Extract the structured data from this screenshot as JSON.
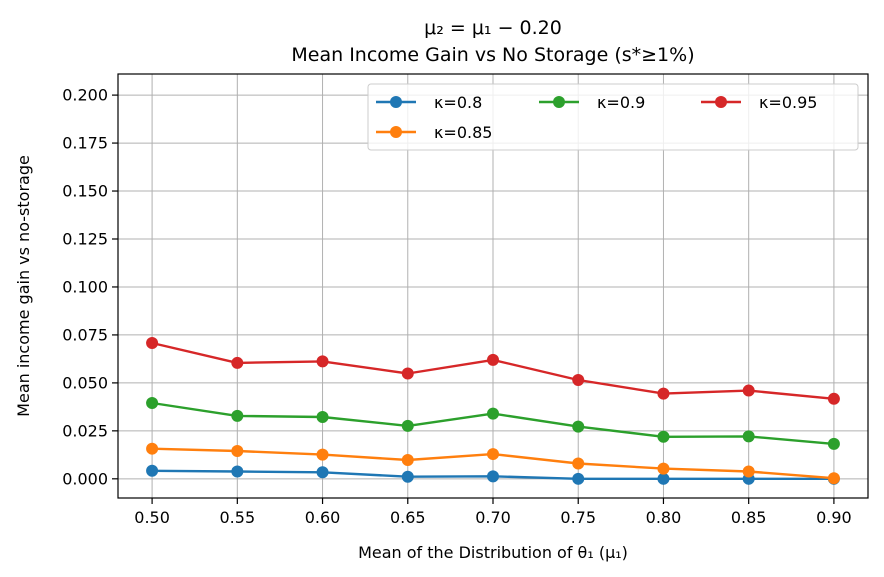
{
  "chart_data": {
    "type": "line",
    "title_line1": "μ₂ = μ₁ − 0.20",
    "title_line2": "Mean Income Gain vs No Storage (s*≥1%)",
    "xlabel": "Mean of the Distribution of θ₁ (μ₁)",
    "ylabel": "Mean income gain vs no-storage",
    "x": [
      0.5,
      0.55,
      0.6,
      0.65,
      0.7,
      0.75,
      0.8,
      0.85,
      0.9
    ],
    "xticks": [
      "0.50",
      "0.55",
      "0.60",
      "0.65",
      "0.70",
      "0.75",
      "0.80",
      "0.85",
      "0.90"
    ],
    "yticks": [
      "0.000",
      "0.025",
      "0.050",
      "0.075",
      "0.100",
      "0.125",
      "0.150",
      "0.175",
      "0.200"
    ],
    "ytick_values": [
      0.0,
      0.025,
      0.05,
      0.075,
      0.1,
      0.125,
      0.15,
      0.175,
      0.2
    ],
    "xlim": [
      0.48,
      0.92
    ],
    "ylim": [
      -0.01,
      0.211
    ],
    "grid": true,
    "legend_position": "top-right",
    "series": [
      {
        "name": "κ=0.8",
        "color": "#1f77b4",
        "values": [
          0.0042,
          0.0038,
          0.0034,
          0.0011,
          0.0013,
          0.0,
          0.0,
          0.0,
          0.0
        ]
      },
      {
        "name": "κ=0.85",
        "color": "#ff7f0e",
        "values": [
          0.0157,
          0.0145,
          0.0126,
          0.0098,
          0.0129,
          0.008,
          0.0053,
          0.0038,
          0.0003
        ]
      },
      {
        "name": "κ=0.9",
        "color": "#2ca02c",
        "values": [
          0.0395,
          0.0328,
          0.0322,
          0.0276,
          0.034,
          0.0272,
          0.0219,
          0.0221,
          0.0182
        ]
      },
      {
        "name": "κ=0.95",
        "color": "#d62728",
        "values": [
          0.0708,
          0.0604,
          0.0612,
          0.0549,
          0.062,
          0.0515,
          0.0444,
          0.046,
          0.0417
        ]
      }
    ]
  }
}
